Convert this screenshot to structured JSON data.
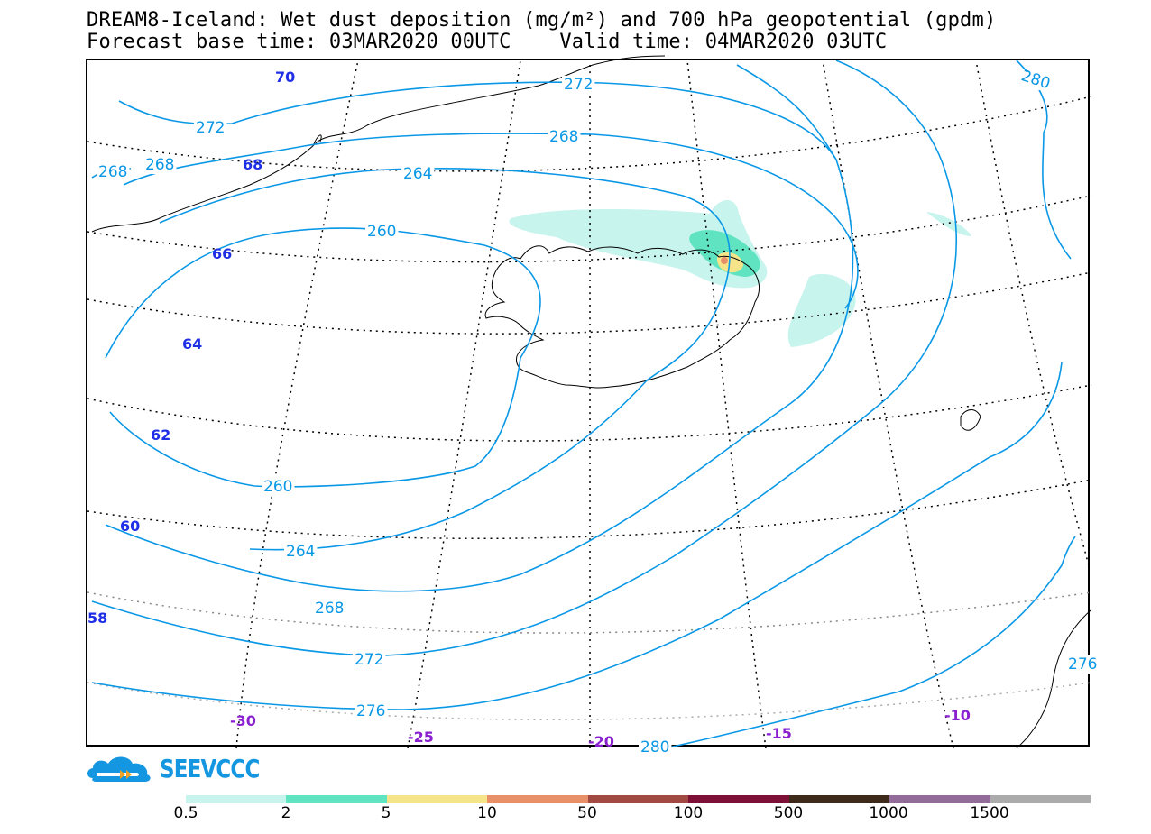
{
  "title": {
    "line1": "DREAM8-Iceland: Wet dust deposition (mg/m²) and 700 hPa geopotential (gpdm)",
    "line2": "Forecast base time: 03MAR2020 00UTC    Valid time: 04MAR2020 03UTC"
  },
  "contour_labels": [
    "272",
    "272",
    "268",
    "268",
    "268",
    "264",
    "260",
    "260",
    "264",
    "268",
    "272",
    "276",
    "280",
    "280",
    "276"
  ],
  "latitude_labels": [
    "70",
    "68",
    "66",
    "64",
    "62",
    "60",
    "58"
  ],
  "longitude_labels": [
    "-30",
    "-25",
    "-20",
    "-15",
    "-10"
  ],
  "logo": {
    "text": "SEEVCCC",
    "icon": "cloud-logo-icon"
  },
  "colorbar": {
    "labels": [
      "0.5",
      "2",
      "5",
      "10",
      "50",
      "100",
      "500",
      "1000",
      "1500"
    ],
    "colors": [
      "#c8f4ee",
      "#5fe3c0",
      "#f6e48a",
      "#e8906a",
      "#a04a42",
      "#7e1038",
      "#3e2a1a",
      "#926b9a",
      "#ababab"
    ]
  },
  "colors": {
    "contour": "#0a98e6",
    "lat_label": "#1f2fe6",
    "lon_label": "#8a1fd0"
  }
}
